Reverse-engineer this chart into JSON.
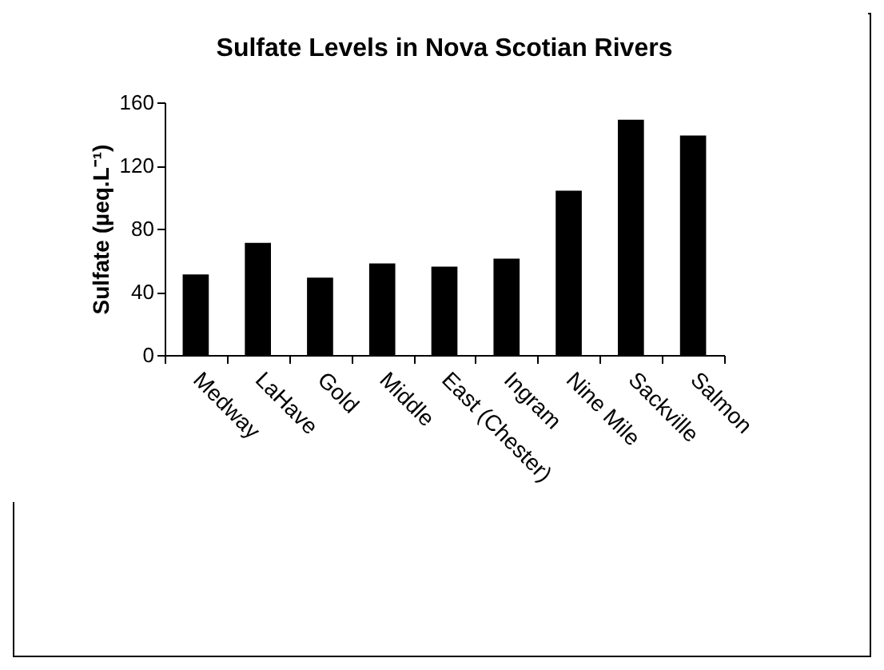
{
  "chart_data": {
    "type": "bar",
    "title": "Sulfate Levels in Nova Scotian Rivers",
    "ylabel": "Sulfate (µeq.L⁻¹)",
    "categories": [
      "Medway",
      "LaHave",
      "Gold",
      "Middle",
      "East (Chester)",
      "Ingram",
      "Nine Mile",
      "Sackville",
      "Salmon"
    ],
    "values": [
      51,
      71,
      49,
      58,
      56,
      61,
      104,
      149,
      139
    ],
    "color": "#000000",
    "ylim": [
      0,
      160
    ],
    "yticks": [
      0,
      40,
      80,
      120,
      160
    ],
    "grid": false
  }
}
